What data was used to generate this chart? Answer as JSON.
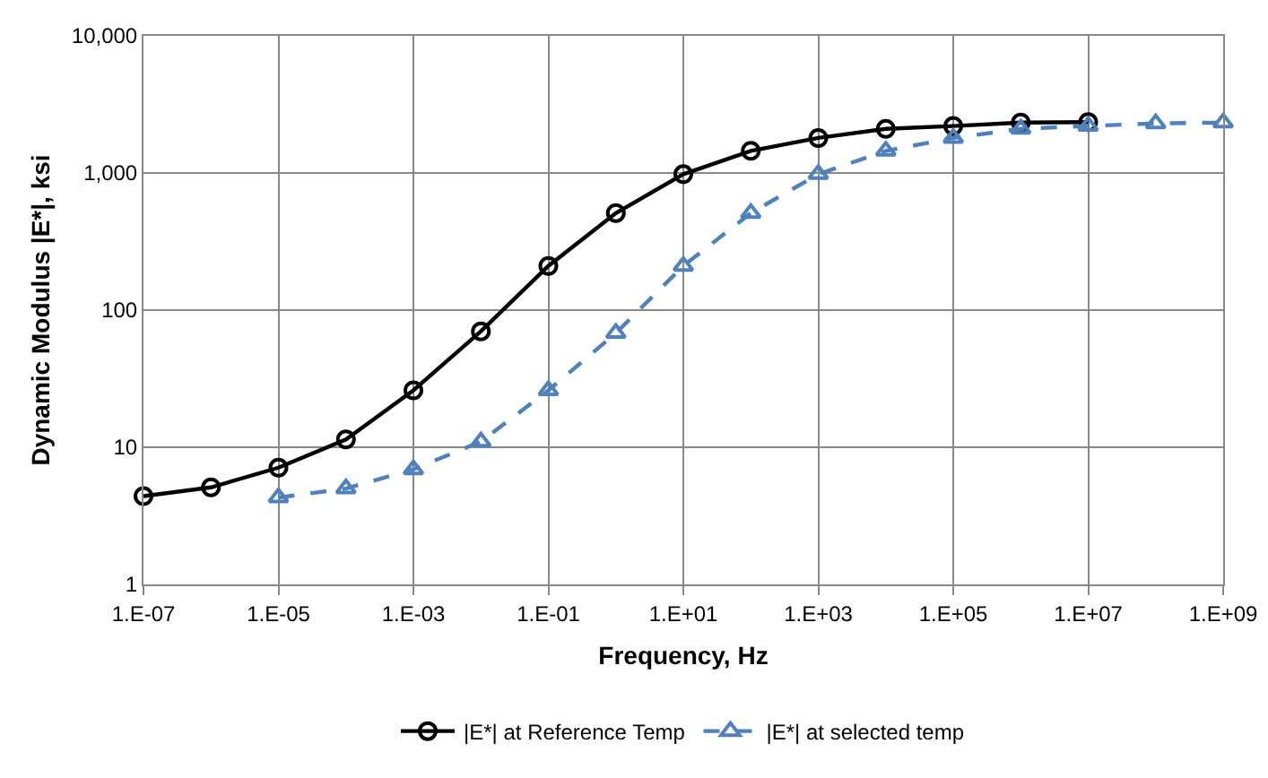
{
  "chart_data": {
    "type": "line",
    "xlabel": "Frequency, Hz",
    "ylabel": "Dynamic Modulus |E*|, ksi",
    "log": "y",
    "grid": true,
    "legend": "bottom",
    "categories": [
      "1.E-07",
      null,
      "1.E-05",
      null,
      "1.E-03",
      null,
      "1.E-01",
      null,
      "1.E+01",
      null,
      "1.E+03",
      null,
      "1.E+05",
      null,
      "1.E+07",
      null,
      "1.E+09"
    ],
    "ylim": [
      1,
      10000
    ],
    "yticks": [
      1,
      10,
      100,
      {
        "value": 1000,
        "label": "1,000"
      },
      {
        "value": 10000,
        "label": "10,000"
      }
    ],
    "series": [
      {
        "name": "|E*| at Reference Temp",
        "color": "#000000",
        "marker": "circle",
        "line_style": "solid",
        "values": [
          4.4,
          5.1,
          7.1,
          11.4,
          26,
          70,
          210,
          510,
          980,
          1450,
          1800,
          2100,
          2200,
          2330,
          2350,
          null,
          null
        ]
      },
      {
        "name": "|E*| at selected temp",
        "color": "#4f81bd",
        "marker": "triangle",
        "line_style": "dashed",
        "values": [
          null,
          null,
          4.3,
          5.0,
          6.9,
          11,
          26,
          68,
          210,
          510,
          980,
          1450,
          1800,
          2100,
          2200,
          2300,
          2330
        ]
      }
    ]
  }
}
